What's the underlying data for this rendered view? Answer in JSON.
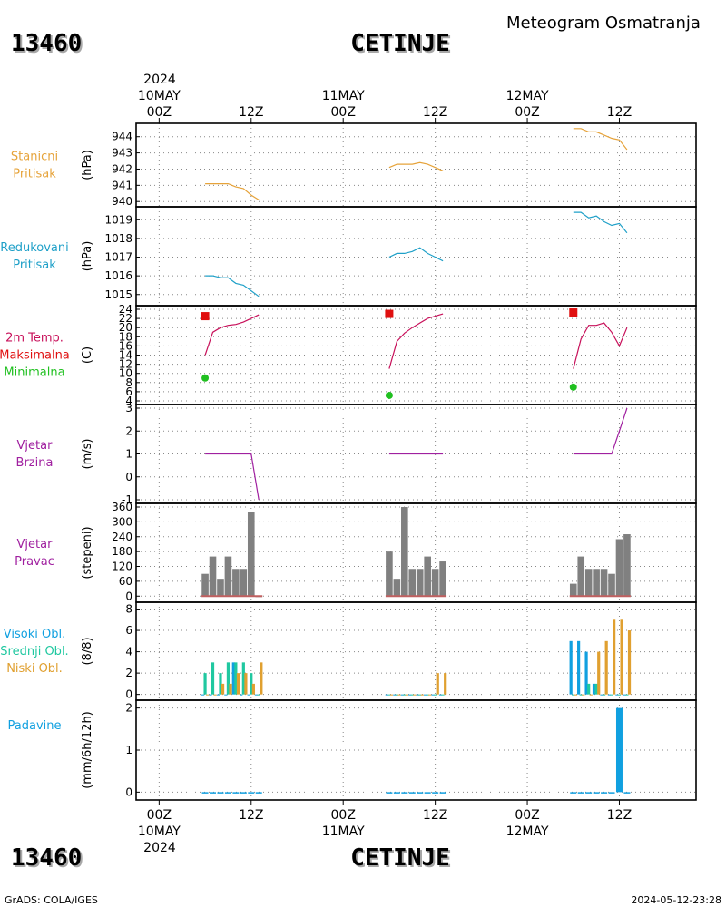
{
  "header": {
    "station_id": "13460",
    "station_name": "CETINJE",
    "product": "Meteogram Osmatranja"
  },
  "footer": {
    "credit": "GrADS: COLA/IGES",
    "timestamp": "2024-05-12-23:28"
  },
  "time_axis": {
    "top_year": "2024",
    "bottom_year": "2024",
    "ticks": [
      {
        "x": 0,
        "label": "00Z",
        "date": "10MAY"
      },
      {
        "x": 12,
        "label": "12Z",
        "date": ""
      },
      {
        "x": 24,
        "label": "00Z",
        "date": "11MAY"
      },
      {
        "x": 36,
        "label": "12Z",
        "date": ""
      },
      {
        "x": 48,
        "label": "00Z",
        "date": "12MAY"
      },
      {
        "x": 60,
        "label": "12Z",
        "date": ""
      }
    ],
    "range_hours": [
      -3,
      70
    ]
  },
  "colors": {
    "station_pressure": "#e6a33a",
    "reduced_pressure": "#1fa0c8",
    "temperature": "#c8105a",
    "tmax": "#e01010",
    "tmin": "#20c020",
    "wind": "#a020a0",
    "wind_dir_bar": "#808080",
    "wind_dir_base": "#c06060",
    "cloud_high": "#10a0e0",
    "cloud_mid": "#20c8a0",
    "cloud_low": "#e0a030",
    "precip": "#10a0e0"
  },
  "chart_data": [
    {
      "type": "line",
      "name": "stanicni_pritisak",
      "labels": [
        "Stanicni",
        "Pritisak"
      ],
      "ylabel": "(hPa)",
      "ylim": [
        939.9,
        944.6
      ],
      "yticks": [
        940,
        941,
        942,
        943,
        944
      ],
      "series": [
        {
          "x": [
            6,
            7,
            8,
            9,
            10,
            11,
            12,
            13
          ],
          "y": [
            941.1,
            941.1,
            941.1,
            941.1,
            940.9,
            940.8,
            940.4,
            940.1
          ]
        },
        {
          "x": [
            30,
            31,
            32,
            33,
            34,
            35,
            36,
            37
          ],
          "y": [
            942.1,
            942.3,
            942.3,
            942.3,
            942.4,
            942.3,
            942.1,
            941.9
          ]
        },
        {
          "x": [
            54,
            55,
            56,
            57,
            58,
            59,
            60,
            61
          ],
          "y": [
            944.5,
            944.5,
            944.3,
            944.3,
            944.1,
            943.9,
            943.8,
            943.2
          ]
        }
      ]
    },
    {
      "type": "line",
      "name": "redukovani_pritisak",
      "labels": [
        "Redukovani",
        "Pritisak"
      ],
      "ylabel": "(hPa)",
      "ylim": [
        1014.6,
        1019.5
      ],
      "yticks": [
        1015,
        1016,
        1017,
        1018,
        1019
      ],
      "series": [
        {
          "x": [
            6,
            7,
            8,
            9,
            10,
            11,
            12,
            13
          ],
          "y": [
            1016.0,
            1016.0,
            1015.9,
            1015.9,
            1015.6,
            1015.5,
            1015.2,
            1014.9
          ]
        },
        {
          "x": [
            30,
            31,
            32,
            33,
            34,
            35,
            36,
            37
          ],
          "y": [
            1017.0,
            1017.2,
            1017.2,
            1017.3,
            1017.5,
            1017.2,
            1017.0,
            1016.8
          ]
        },
        {
          "x": [
            54,
            55,
            56,
            57,
            58,
            59,
            60,
            61
          ],
          "y": [
            1019.4,
            1019.4,
            1019.1,
            1019.2,
            1018.9,
            1018.7,
            1018.8,
            1018.3
          ]
        }
      ]
    },
    {
      "type": "line",
      "name": "temperatura",
      "labels": [
        "2m Temp.",
        "Maksimalna",
        "Minimalna"
      ],
      "ylabel": "(C)",
      "ylim": [
        4,
        24
      ],
      "yticks": [
        4,
        6,
        8,
        10,
        12,
        14,
        16,
        18,
        20,
        22,
        24
      ],
      "series": [
        {
          "x": [
            6,
            7,
            8,
            9,
            10,
            11,
            12,
            13
          ],
          "y": [
            14,
            19,
            20,
            20.5,
            20.7,
            21.2,
            22.0,
            22.8
          ]
        },
        {
          "x": [
            30,
            31,
            32,
            33,
            34,
            35,
            36,
            37
          ],
          "y": [
            11,
            17,
            18.8,
            20,
            21,
            22,
            22.5,
            23
          ]
        },
        {
          "x": [
            54,
            55,
            56,
            57,
            58,
            59,
            60,
            61
          ],
          "y": [
            11,
            17.5,
            20.5,
            20.5,
            21,
            19,
            16,
            20
          ]
        }
      ],
      "tmax": {
        "x": [
          6,
          30,
          54
        ],
        "y": [
          22.5,
          23.0,
          23.3
        ]
      },
      "tmin": {
        "x": [
          6,
          30,
          54
        ],
        "y": [
          9,
          5.2,
          7
        ]
      }
    },
    {
      "type": "line",
      "name": "vjetar_brzina",
      "labels": [
        "Vjetar",
        "Brzina"
      ],
      "ylabel": "(m/s)",
      "ylim": [
        -1,
        3
      ],
      "yticks": [
        -1,
        0,
        1,
        2,
        3
      ],
      "series": [
        {
          "x": [
            6,
            7,
            8,
            9,
            10,
            11,
            12,
            13
          ],
          "y": [
            1,
            1,
            1,
            1,
            1,
            1,
            1,
            -1
          ]
        },
        {
          "x": [
            30,
            31,
            32,
            33,
            34,
            35,
            36,
            37
          ],
          "y": [
            1,
            1,
            1,
            1,
            1,
            1,
            1,
            1
          ]
        },
        {
          "x": [
            54,
            55,
            56,
            57,
            58,
            59,
            60,
            61
          ],
          "y": [
            1,
            1,
            1,
            1,
            1,
            1,
            2,
            3
          ]
        }
      ]
    },
    {
      "type": "bar",
      "name": "vjetar_pravac",
      "labels": [
        "Vjetar",
        "Pravac"
      ],
      "ylabel": "(stepeni)",
      "ylim": [
        -10,
        360
      ],
      "yticks": [
        0,
        60,
        120,
        180,
        240,
        300,
        360
      ],
      "x": [
        6,
        7,
        8,
        9,
        10,
        11,
        12,
        13,
        30,
        31,
        32,
        33,
        34,
        35,
        36,
        37,
        54,
        55,
        56,
        57,
        58,
        59,
        60,
        61
      ],
      "values": [
        90,
        160,
        70,
        160,
        110,
        110,
        340,
        0,
        180,
        70,
        360,
        110,
        110,
        160,
        110,
        140,
        50,
        160,
        110,
        110,
        110,
        90,
        230,
        250
      ]
    },
    {
      "type": "bar",
      "name": "oblacnost",
      "labels": [
        "Visoki Obl.",
        "Srednji Obl.",
        "Niski Obl."
      ],
      "ylabel": "(8/8)",
      "ylim": [
        -0.2,
        8.3
      ],
      "yticks": [
        0,
        2,
        4,
        6,
        8
      ],
      "x": [
        6,
        7,
        8,
        9,
        10,
        11,
        12,
        13,
        30,
        31,
        32,
        33,
        34,
        35,
        36,
        37,
        54,
        55,
        56,
        57,
        58,
        59,
        60,
        61
      ],
      "series": [
        {
          "name": "Visoki Obl.",
          "values": [
            0,
            0,
            0,
            0,
            3,
            0,
            0,
            0,
            0,
            0,
            0,
            0,
            0,
            0,
            0,
            0,
            5,
            5,
            4,
            1,
            0,
            0,
            0,
            0
          ]
        },
        {
          "name": "Srednji Obl.",
          "values": [
            2,
            3,
            2,
            3,
            3,
            3,
            2,
            0,
            0,
            0,
            0,
            0,
            0,
            0,
            0,
            0,
            0,
            0,
            1,
            1,
            0,
            0,
            0,
            0
          ]
        },
        {
          "name": "Niski Obl.",
          "values": [
            0,
            0,
            1,
            1,
            2,
            2,
            1,
            3,
            0,
            0,
            0,
            0,
            0,
            0,
            2,
            2,
            0,
            0,
            0,
            4,
            5,
            7,
            7,
            6
          ]
        }
      ]
    },
    {
      "type": "bar",
      "name": "padavine",
      "labels": [
        "Padavine"
      ],
      "ylabel": "(mm/6h/12h)",
      "ylim": [
        -0.1,
        2.1
      ],
      "yticks": [
        0,
        1,
        2
      ],
      "x": [
        6,
        7,
        8,
        9,
        10,
        11,
        12,
        13,
        30,
        31,
        32,
        33,
        34,
        35,
        36,
        37,
        54,
        55,
        56,
        57,
        58,
        59,
        60,
        61
      ],
      "values": [
        0,
        0,
        0,
        0,
        0,
        0,
        0,
        0,
        0,
        0,
        0,
        0,
        0,
        0,
        0,
        0,
        0,
        0,
        0,
        0,
        0,
        0,
        2,
        0
      ]
    }
  ]
}
